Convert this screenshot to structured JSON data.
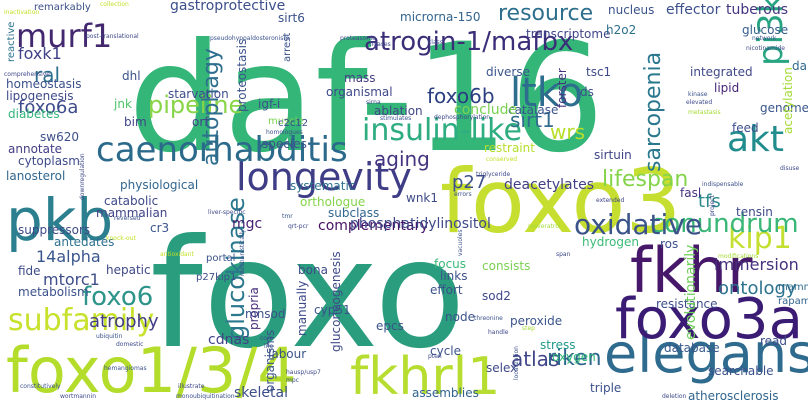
{
  "cloud": {
    "palette": [
      "#440154",
      "#3b528b",
      "#21918c",
      "#5ec962",
      "#fde725"
    ],
    "words": [
      {
        "text": "daf-16",
        "color": "#34b679"
      },
      {
        "text": "foxo",
        "color": "#2a9d7e"
      },
      {
        "text": "foxo3",
        "color": "#c6de2f"
      },
      {
        "text": "foxo1/3/4",
        "color": "#b3dc2b"
      },
      {
        "text": "fkhrl1",
        "color": "#b6dd2f"
      },
      {
        "text": "elegans",
        "color": "#2f6b8e"
      },
      {
        "text": "foxo3a",
        "color": "#3b1c74"
      },
      {
        "text": "fkhr",
        "color": "#47186a"
      },
      {
        "text": "pkb",
        "color": "#2b7f8e"
      },
      {
        "text": "longevity",
        "color": "#3f3d86"
      },
      {
        "text": "caenorhabditis",
        "color": "#2c6a8c"
      },
      {
        "text": "insulin-like",
        "color": "#2dad80"
      },
      {
        "text": "ltko",
        "color": "#2d6d8e"
      },
      {
        "text": "atrogin-1/mafbx",
        "color": "#3c2d79"
      },
      {
        "text": "murf1",
        "color": "#43286f"
      },
      {
        "text": "akt",
        "color": "#218c8d"
      },
      {
        "text": "pi3k",
        "color": "#27a582"
      },
      {
        "text": "resource",
        "color": "#2e6f8e"
      },
      {
        "text": "kip1",
        "color": "#c4df2f"
      },
      {
        "text": "foxo6",
        "color": "#2d948a"
      },
      {
        "text": "subfamily",
        "color": "#c8e12c"
      },
      {
        "text": "lifespan",
        "color": "#84d44b"
      },
      {
        "text": "conundrum",
        "color": "#3ab776"
      },
      {
        "text": "oxidative",
        "color": "#3a5389"
      },
      {
        "text": "glucokinase",
        "color": "#2a778e"
      },
      {
        "text": "pipeline",
        "color": "#88d548"
      },
      {
        "text": "autophagy",
        "color": "#2e6e8e"
      },
      {
        "text": "foxo6b",
        "color": "#2b3e81"
      },
      {
        "text": "sirt1",
        "color": "#2f6c8e"
      },
      {
        "text": "aging",
        "color": "#463480"
      },
      {
        "text": "p27",
        "color": "#3c4f8a"
      },
      {
        "text": "wrs",
        "color": "#b8de29"
      },
      {
        "text": "sarcopenia",
        "color": "#2a788e"
      },
      {
        "text": "ontology",
        "color": "#2c728e"
      },
      {
        "text": "riken",
        "color": "#30678d"
      },
      {
        "text": "atlas",
        "color": "#404688"
      },
      {
        "text": "tfs",
        "color": "#2e8b8c"
      },
      {
        "text": "atrophy",
        "color": "#433e85"
      },
      {
        "text": "mtorc1",
        "color": "#3d4e8a"
      },
      {
        "text": "14alpha",
        "color": "#39568c"
      },
      {
        "text": "ral",
        "color": "#2e6f8e"
      },
      {
        "text": "foxo6a",
        "color": "#3e4b8a"
      },
      {
        "text": "foxk1",
        "color": "#404387"
      },
      {
        "text": "gastroprotective",
        "color": "#3c4f8a"
      },
      {
        "text": "microrna-150",
        "color": "#32648e"
      },
      {
        "text": "transcriptome",
        "color": "#404588"
      },
      {
        "text": "nucleus",
        "color": "#3a538b"
      },
      {
        "text": "effector",
        "color": "#3c508b"
      },
      {
        "text": "tuberous",
        "color": "#453581"
      },
      {
        "text": "h2o2",
        "color": "#2d708e"
      },
      {
        "text": "glucose",
        "color": "#355e8d"
      },
      {
        "text": "dauer",
        "color": "#31678e"
      },
      {
        "text": "integrated",
        "color": "#3f4788"
      },
      {
        "text": "lipid",
        "color": "#482576"
      },
      {
        "text": "genome",
        "color": "#39568c"
      },
      {
        "text": "feed",
        "color": "#3d4d8a"
      },
      {
        "text": "acetylation",
        "color": "#a5db36"
      },
      {
        "text": "sirtuin",
        "color": "#404688"
      },
      {
        "text": "catalase",
        "color": "#3a548c"
      },
      {
        "text": "restraint",
        "color": "#b5de2b"
      },
      {
        "text": "deacetylates",
        "color": "#423f85"
      },
      {
        "text": "physiological",
        "color": "#32658e"
      },
      {
        "text": "orthologue",
        "color": "#84d44b"
      },
      {
        "text": "systematic",
        "color": "#2d718e"
      },
      {
        "text": "mgc",
        "color": "#482173"
      },
      {
        "text": "complementary",
        "color": "#471164"
      },
      {
        "text": "phosphatidylinositol",
        "color": "#3e4989"
      },
      {
        "text": "subclass",
        "color": "#31678e"
      },
      {
        "text": "hydrogen",
        "color": "#3aba76"
      },
      {
        "text": "ros",
        "color": "#3b528b"
      },
      {
        "text": "fasl",
        "color": "#46327e"
      },
      {
        "text": "tensin",
        "color": "#3e4a89"
      },
      {
        "text": "immersion",
        "color": "#45307d"
      },
      {
        "text": "mammals",
        "color": "#2f6b8e"
      },
      {
        "text": "rapamycin",
        "color": "#32648e"
      },
      {
        "text": "resistance",
        "color": "#3c4f8a"
      },
      {
        "text": "database",
        "color": "#37598c"
      },
      {
        "text": "read",
        "color": "#3d4e8a"
      },
      {
        "text": "evolutionarily",
        "color": "#6ece58"
      },
      {
        "text": "searchable",
        "color": "#3b518b"
      },
      {
        "text": "atherosclerosis",
        "color": "#31658e"
      },
      {
        "text": "triple",
        "color": "#3b518b"
      },
      {
        "text": "stress",
        "color": "#1f9a8a"
      },
      {
        "text": "oxygen",
        "color": "#32b67a"
      },
      {
        "text": "selex",
        "color": "#3f4788"
      },
      {
        "text": "cycle",
        "color": "#3b528b"
      },
      {
        "text": "assemblies",
        "color": "#32648e"
      },
      {
        "text": "skeletal",
        "color": "#3c4f8a"
      },
      {
        "text": "labour",
        "color": "#3a538b"
      },
      {
        "text": "cdnas",
        "color": "#404387"
      },
      {
        "text": "mnsod",
        "color": "#3b528b"
      },
      {
        "text": "propria",
        "color": "#472d7b"
      },
      {
        "text": "p27kip1",
        "color": "#3c4f8a"
      },
      {
        "text": "portal",
        "color": "#3b528b"
      },
      {
        "text": "hepatic",
        "color": "#3f4788"
      },
      {
        "text": "fide",
        "color": "#3e4c8a"
      },
      {
        "text": "metabolism",
        "color": "#3b528b"
      },
      {
        "text": "antedates",
        "color": "#2d708e"
      },
      {
        "text": "suppressors",
        "color": "#3e4a89"
      },
      {
        "text": "mammalian",
        "color": "#404588"
      },
      {
        "text": "catabolic",
        "color": "#3e4989"
      },
      {
        "text": "cr3",
        "color": "#3a548c"
      },
      {
        "text": "lanosterol",
        "color": "#31668e"
      },
      {
        "text": "cytoplasm",
        "color": "#3e4c8a"
      },
      {
        "text": "annotate",
        "color": "#433e85"
      },
      {
        "text": "sw620",
        "color": "#3c4f8a"
      },
      {
        "text": "diabetes",
        "color": "#32b67a"
      },
      {
        "text": "lipogenesis",
        "color": "#3e4989"
      },
      {
        "text": "homeostasis",
        "color": "#3b518b"
      },
      {
        "text": "reactive",
        "color": "#2c738e"
      },
      {
        "text": "remarkably",
        "color": "#3c508b"
      },
      {
        "text": "dhl",
        "color": "#3b528b"
      },
      {
        "text": "jnk",
        "color": "#4fc46a"
      },
      {
        "text": "bim",
        "color": "#404588"
      },
      {
        "text": "orf",
        "color": "#404387"
      },
      {
        "text": "starvation",
        "color": "#3d4e8a"
      },
      {
        "text": "igf-i",
        "color": "#3a538b"
      },
      {
        "text": "muscle",
        "color": "#7ad151"
      },
      {
        "text": "proteostasis",
        "color": "#3b528b"
      },
      {
        "text": "arrest",
        "color": "#3b528b"
      },
      {
        "text": "c2c12",
        "color": "#3d4d8a"
      },
      {
        "text": "species",
        "color": "#3c508b"
      },
      {
        "text": "organismal",
        "color": "#3e4989"
      },
      {
        "text": "mass",
        "color": "#433e85"
      },
      {
        "text": "ablation",
        "color": "#3f4788"
      },
      {
        "text": "conclude",
        "color": "#7ad151"
      },
      {
        "text": "tsc1",
        "color": "#3e4a89"
      },
      {
        "text": "forster",
        "color": "#46327e"
      },
      {
        "text": "ds",
        "color": "#3c4f8a"
      },
      {
        "text": "diverse",
        "color": "#3a548c"
      },
      {
        "text": "sirt6",
        "color": "#3b518b"
      },
      {
        "text": "wnk1",
        "color": "#3e4a89"
      },
      {
        "text": "links",
        "color": "#3c4f8a"
      },
      {
        "text": "effort",
        "color": "#3b528b"
      },
      {
        "text": "sod2",
        "color": "#3f4788"
      },
      {
        "text": "peroxide",
        "color": "#3a548c"
      },
      {
        "text": "node",
        "color": "#3b528b"
      },
      {
        "text": "consists",
        "color": "#7ad151"
      },
      {
        "text": "gluconeogenesis",
        "color": "#3e4a89"
      },
      {
        "text": "epcs",
        "color": "#3b528b"
      },
      {
        "text": "manually",
        "color": "#3e4989"
      },
      {
        "text": "organisms",
        "color": "#3b528b"
      },
      {
        "text": "bona",
        "color": "#3e4c8a"
      },
      {
        "text": "cyp51",
        "color": "#3a548c"
      },
      {
        "text": "focus",
        "color": "#38b977"
      },
      {
        "text": "modifications",
        "color": "#a5db36"
      },
      {
        "text": "kinase",
        "color": "#3b528b"
      },
      {
        "text": "elevated",
        "color": "#3e4989"
      },
      {
        "text": "metastasis",
        "color": "#a5db36"
      },
      {
        "text": "disuse",
        "color": "#3e4989"
      },
      {
        "text": "indispensable",
        "color": "#3b528b"
      },
      {
        "text": "extended",
        "color": "#404588"
      },
      {
        "text": "collection",
        "color": "#c2df23"
      },
      {
        "text": "inactivation",
        "color": "#c2df23"
      },
      {
        "text": "post-translational",
        "color": "#3e4989"
      },
      {
        "text": "comprehensive",
        "color": "#3e4989"
      },
      {
        "text": "pseudohypoaldosteronism",
        "color": "#3b528b"
      },
      {
        "text": "proteasome",
        "color": "#3e4989"
      },
      {
        "text": "ligases",
        "color": "#3e4989"
      },
      {
        "text": "class",
        "color": "#3b528b"
      },
      {
        "text": "dephosphorylation",
        "color": "#3e4989"
      },
      {
        "text": "stimulates",
        "color": "#3b528b"
      },
      {
        "text": "sirna",
        "color": "#3e4989"
      },
      {
        "text": "homologues",
        "color": "#3b528b"
      },
      {
        "text": "conserved",
        "color": "#c2df23"
      },
      {
        "text": "triglyceride",
        "color": "#3e4989"
      },
      {
        "text": "reversed",
        "color": "#3b528b"
      },
      {
        "text": "downregulation",
        "color": "#3e4989"
      },
      {
        "text": "errors",
        "color": "#3b528b"
      },
      {
        "text": "liver-specific",
        "color": "#3e4989"
      },
      {
        "text": "tmr",
        "color": "#3b528b"
      },
      {
        "text": "qrt-pcr",
        "color": "#3e4989"
      },
      {
        "text": "resveratrol",
        "color": "#a5db36"
      },
      {
        "text": "antioxidant",
        "color": "#c2df23"
      },
      {
        "text": "knock-out",
        "color": "#c2df23"
      },
      {
        "text": "mechanistically",
        "color": "#3b528b"
      },
      {
        "text": "span",
        "color": "#3e4989"
      },
      {
        "text": "vacuoles",
        "color": "#3b528b"
      },
      {
        "text": "project",
        "color": "#3e4989"
      },
      {
        "text": "ubiquitin",
        "color": "#3b528b"
      },
      {
        "text": "domestic",
        "color": "#3e4989"
      },
      {
        "text": "hemangiomas",
        "color": "#3b528b"
      },
      {
        "text": "core",
        "color": "#3e4989"
      },
      {
        "text": "life",
        "color": "#3b528b"
      },
      {
        "text": "hausp/usp7",
        "color": "#3e4989"
      },
      {
        "text": "mpc",
        "color": "#3b528b"
      },
      {
        "text": "illustrate",
        "color": "#3e4989"
      },
      {
        "text": "constitutively",
        "color": "#3b528b"
      },
      {
        "text": "wortmannin",
        "color": "#3e4989"
      },
      {
        "text": "monoubiquitination",
        "color": "#3b528b"
      },
      {
        "text": "pten",
        "color": "#3e4989"
      },
      {
        "text": "threonine",
        "color": "#3b528b"
      },
      {
        "text": "handle",
        "color": "#3e4989"
      },
      {
        "text": "step",
        "color": "#a5db36"
      },
      {
        "text": "localization",
        "color": "#3b528b"
      },
      {
        "text": "deletion",
        "color": "#3e4989"
      },
      {
        "text": "network",
        "color": "#3b528b"
      },
      {
        "text": "nicotinamide",
        "color": "#3e4989"
      }
    ]
  }
}
